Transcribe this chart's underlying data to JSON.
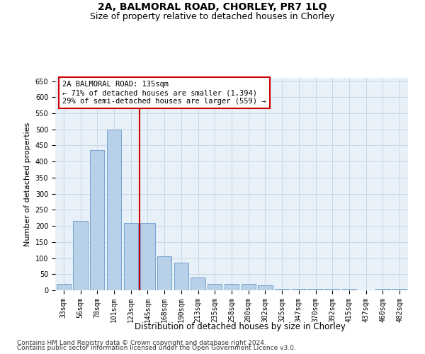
{
  "title1": "2A, BALMORAL ROAD, CHORLEY, PR7 1LQ",
  "title2": "Size of property relative to detached houses in Chorley",
  "xlabel": "Distribution of detached houses by size in Chorley",
  "ylabel": "Number of detached properties",
  "categories": [
    "33sqm",
    "56sqm",
    "78sqm",
    "101sqm",
    "123sqm",
    "145sqm",
    "168sqm",
    "190sqm",
    "213sqm",
    "235sqm",
    "258sqm",
    "280sqm",
    "302sqm",
    "325sqm",
    "347sqm",
    "370sqm",
    "392sqm",
    "415sqm",
    "437sqm",
    "460sqm",
    "482sqm"
  ],
  "values": [
    20,
    215,
    435,
    500,
    210,
    210,
    105,
    85,
    40,
    20,
    20,
    20,
    15,
    5,
    5,
    5,
    5,
    5,
    0,
    5,
    5
  ],
  "bar_color": "#b8d0e8",
  "bar_edge_color": "#6699cc",
  "vline_x": 4.5,
  "vline_color": "#cc0000",
  "annotation_text": "2A BALMORAL ROAD: 135sqm\n← 71% of detached houses are smaller (1,394)\n29% of semi-detached houses are larger (559) →",
  "annotation_box_color": "#ffffff",
  "annotation_box_edge": "#cc0000",
  "ylim": [
    0,
    660
  ],
  "yticks": [
    0,
    50,
    100,
    150,
    200,
    250,
    300,
    350,
    400,
    450,
    500,
    550,
    600,
    650
  ],
  "grid_color": "#c8d8e8",
  "bg_color": "#e8f0f8",
  "footer1": "Contains HM Land Registry data © Crown copyright and database right 2024.",
  "footer2": "Contains public sector information licensed under the Open Government Licence v3.0.",
  "title1_fontsize": 10,
  "title2_fontsize": 9,
  "xlabel_fontsize": 8.5,
  "ylabel_fontsize": 8,
  "tick_fontsize": 7,
  "annotation_fontsize": 7.5,
  "footer_fontsize": 6.5
}
